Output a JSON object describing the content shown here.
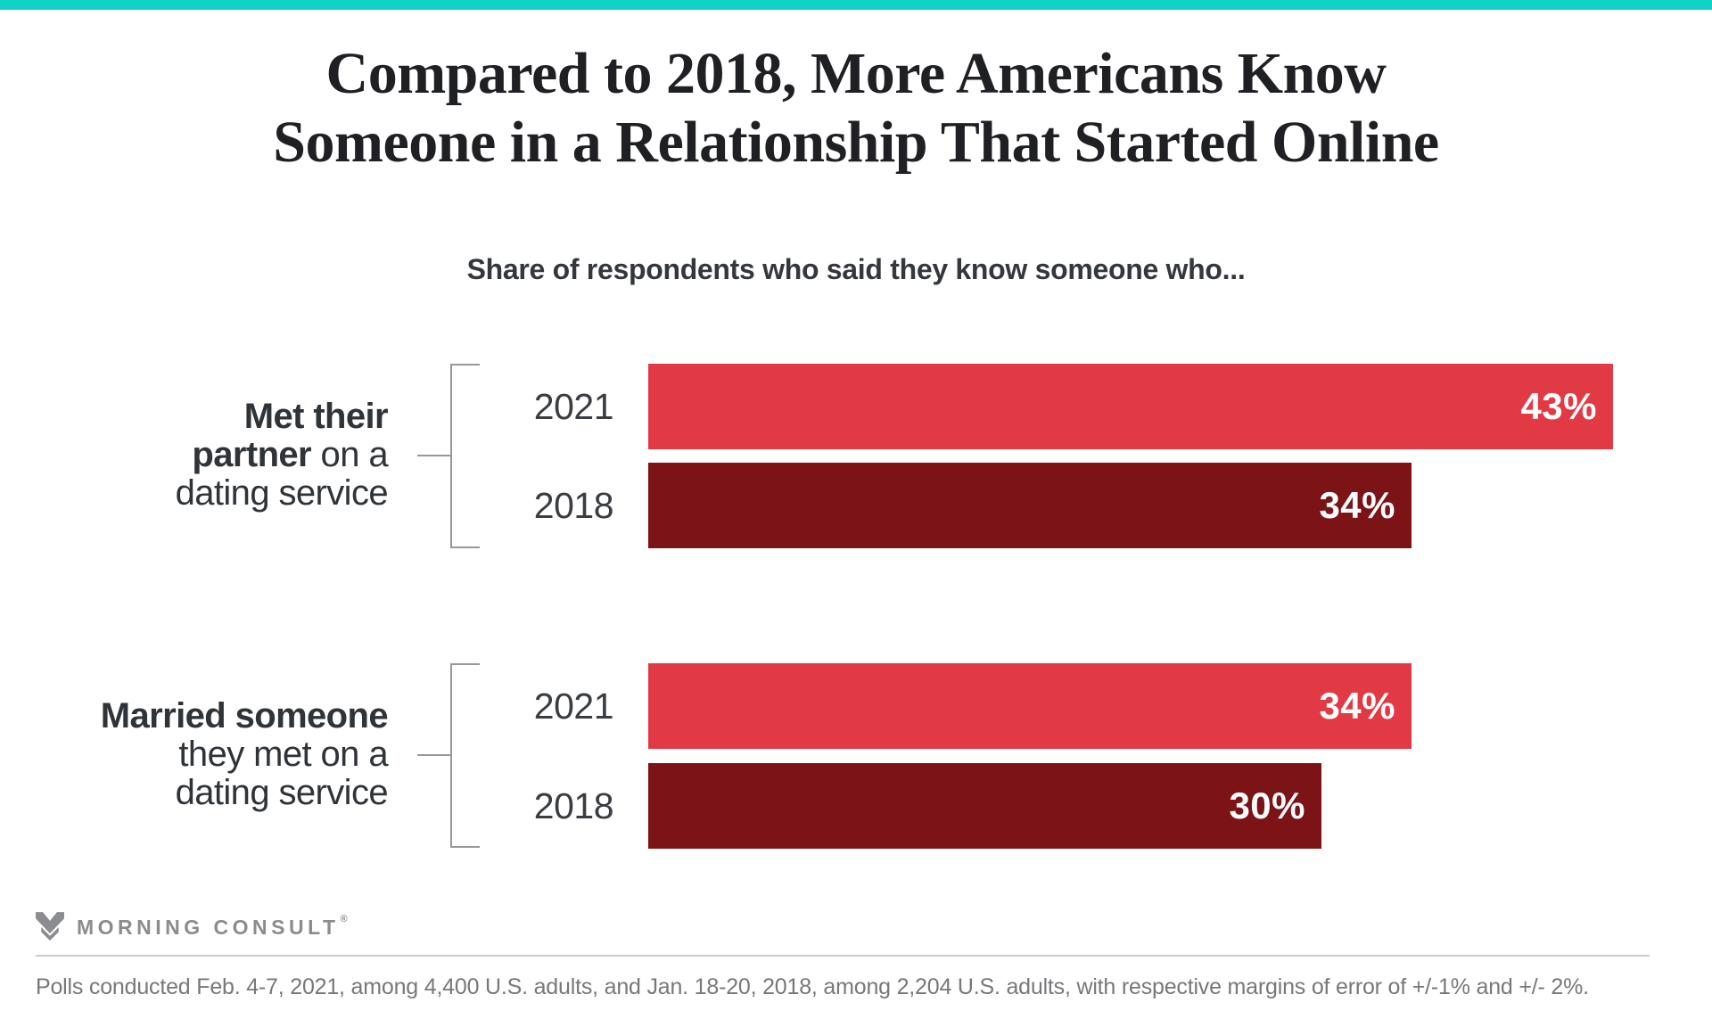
{
  "page": {
    "accent_teal": "#11d2c6",
    "background": "#ffffff"
  },
  "header": {
    "title_line1": "Compared to 2018, More Americans Know",
    "title_line2": "Someone in a Relationship That Started Online",
    "subtitle": "Share of respondents who said they know someone who..."
  },
  "chart_data": {
    "type": "bar",
    "orientation": "horizontal",
    "title": "Compared to 2018, More Americans Know Someone in a Relationship That Started Online",
    "subtitle": "Share of respondents who said they know someone who...",
    "categories": [
      "Met their partner on a dating service",
      "Married someone they met on a dating service"
    ],
    "series": [
      {
        "name": "2021",
        "color": "#e23a44",
        "values": [
          43,
          34
        ]
      },
      {
        "name": "2018",
        "color": "#7c1316",
        "values": [
          34,
          30
        ]
      }
    ],
    "unit": "%",
    "xlim": [
      0,
      45
    ],
    "axis": "none — no gridlines, no tick axis; values labeled inside bar ends",
    "value_label_style": "white bold, inside right end of bar",
    "legend": "none — each bar labeled with its year at left"
  },
  "groups": [
    {
      "label_lines": [
        {
          "bold": "Met their",
          "rest": ""
        },
        {
          "bold": "partner",
          "rest": " on a"
        },
        {
          "bold": "",
          "rest": "dating service"
        }
      ],
      "bars": [
        {
          "year": "2021",
          "value": 43,
          "value_label": "43%"
        },
        {
          "year": "2018",
          "value": 34,
          "value_label": "34%"
        }
      ]
    },
    {
      "label_lines": [
        {
          "bold": "Married someone",
          "rest": ""
        },
        {
          "bold": "",
          "rest": "they met on a"
        },
        {
          "bold": "",
          "rest": "dating service"
        }
      ],
      "bars": [
        {
          "year": "2021",
          "value": 34,
          "value_label": "34%"
        },
        {
          "year": "2018",
          "value": 30,
          "value_label": "30%"
        }
      ]
    }
  ],
  "footer": {
    "brand": "MORNING CONSULT",
    "registered": "®",
    "source_note": "Polls conducted Feb. 4-7, 2021, among 4,400 U.S. adults, and Jan. 18-20, 2018, among 2,204 U.S. adults, with respective margins of error of +/-1% and +/- 2%."
  }
}
